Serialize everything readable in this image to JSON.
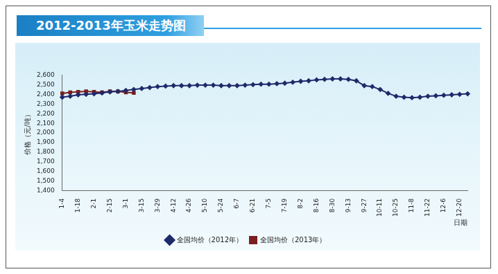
{
  "chart_data": {
    "type": "line",
    "title": "2012-2013年玉米走势图",
    "x_label": "日期",
    "y_label": "价格（元/吨）",
    "categories": [
      "1-4",
      null,
      "1-18",
      null,
      "2-1",
      null,
      "2-15",
      null,
      "3-1",
      null,
      "3-15",
      null,
      "3-29",
      null,
      "4-12",
      null,
      "4-26",
      null,
      "5-10",
      null,
      "5-24",
      null,
      "6-7",
      null,
      "6-21",
      null,
      "7-5",
      null,
      "7-19",
      null,
      "8-2",
      null,
      "8-16",
      null,
      "8-30",
      null,
      "9-13",
      null,
      "9-27",
      null,
      "10-11",
      null,
      "10-25",
      null,
      "11-8",
      null,
      "11-22",
      null,
      "12-6",
      null,
      "12-20",
      null
    ],
    "series": [
      {
        "name": "全国均价（2012年）",
        "color": "#1f2a6b",
        "marker": "diamond",
        "values": [
          2370,
          2380,
          2395,
          2400,
          2405,
          2415,
          2425,
          2430,
          2440,
          2450,
          2460,
          2470,
          2480,
          2485,
          2490,
          2490,
          2490,
          2495,
          2495,
          2495,
          2490,
          2490,
          2490,
          2495,
          2500,
          2505,
          2505,
          2510,
          2515,
          2525,
          2535,
          2540,
          2550,
          2555,
          2560,
          2560,
          2555,
          2540,
          2490,
          2480,
          2450,
          2410,
          2380,
          2370,
          2365,
          2370,
          2380,
          2385,
          2390,
          2395,
          2400,
          2405
        ]
      },
      {
        "name": "全国均价（2013年）",
        "color": "#7a1f1f",
        "marker": "square",
        "values": [
          2410,
          2420,
          2425,
          2430,
          2425,
          2420,
          2430,
          2430,
          2420,
          2415,
          null,
          null,
          null,
          null,
          null,
          null,
          null,
          null,
          null,
          null,
          null,
          null,
          null,
          null,
          null,
          null,
          null,
          null,
          null,
          null,
          null,
          null,
          null,
          null,
          null,
          null,
          null,
          null,
          null,
          null,
          null,
          null,
          null,
          null,
          null,
          null,
          null,
          null,
          null,
          null,
          null,
          null
        ]
      }
    ],
    "ylim": [
      1400,
      2600
    ],
    "yticks": [
      1400,
      1500,
      1600,
      1700,
      1800,
      1900,
      2000,
      2100,
      2200,
      2300,
      2400,
      2500,
      2600
    ],
    "grid": false,
    "legend": "bottom"
  }
}
